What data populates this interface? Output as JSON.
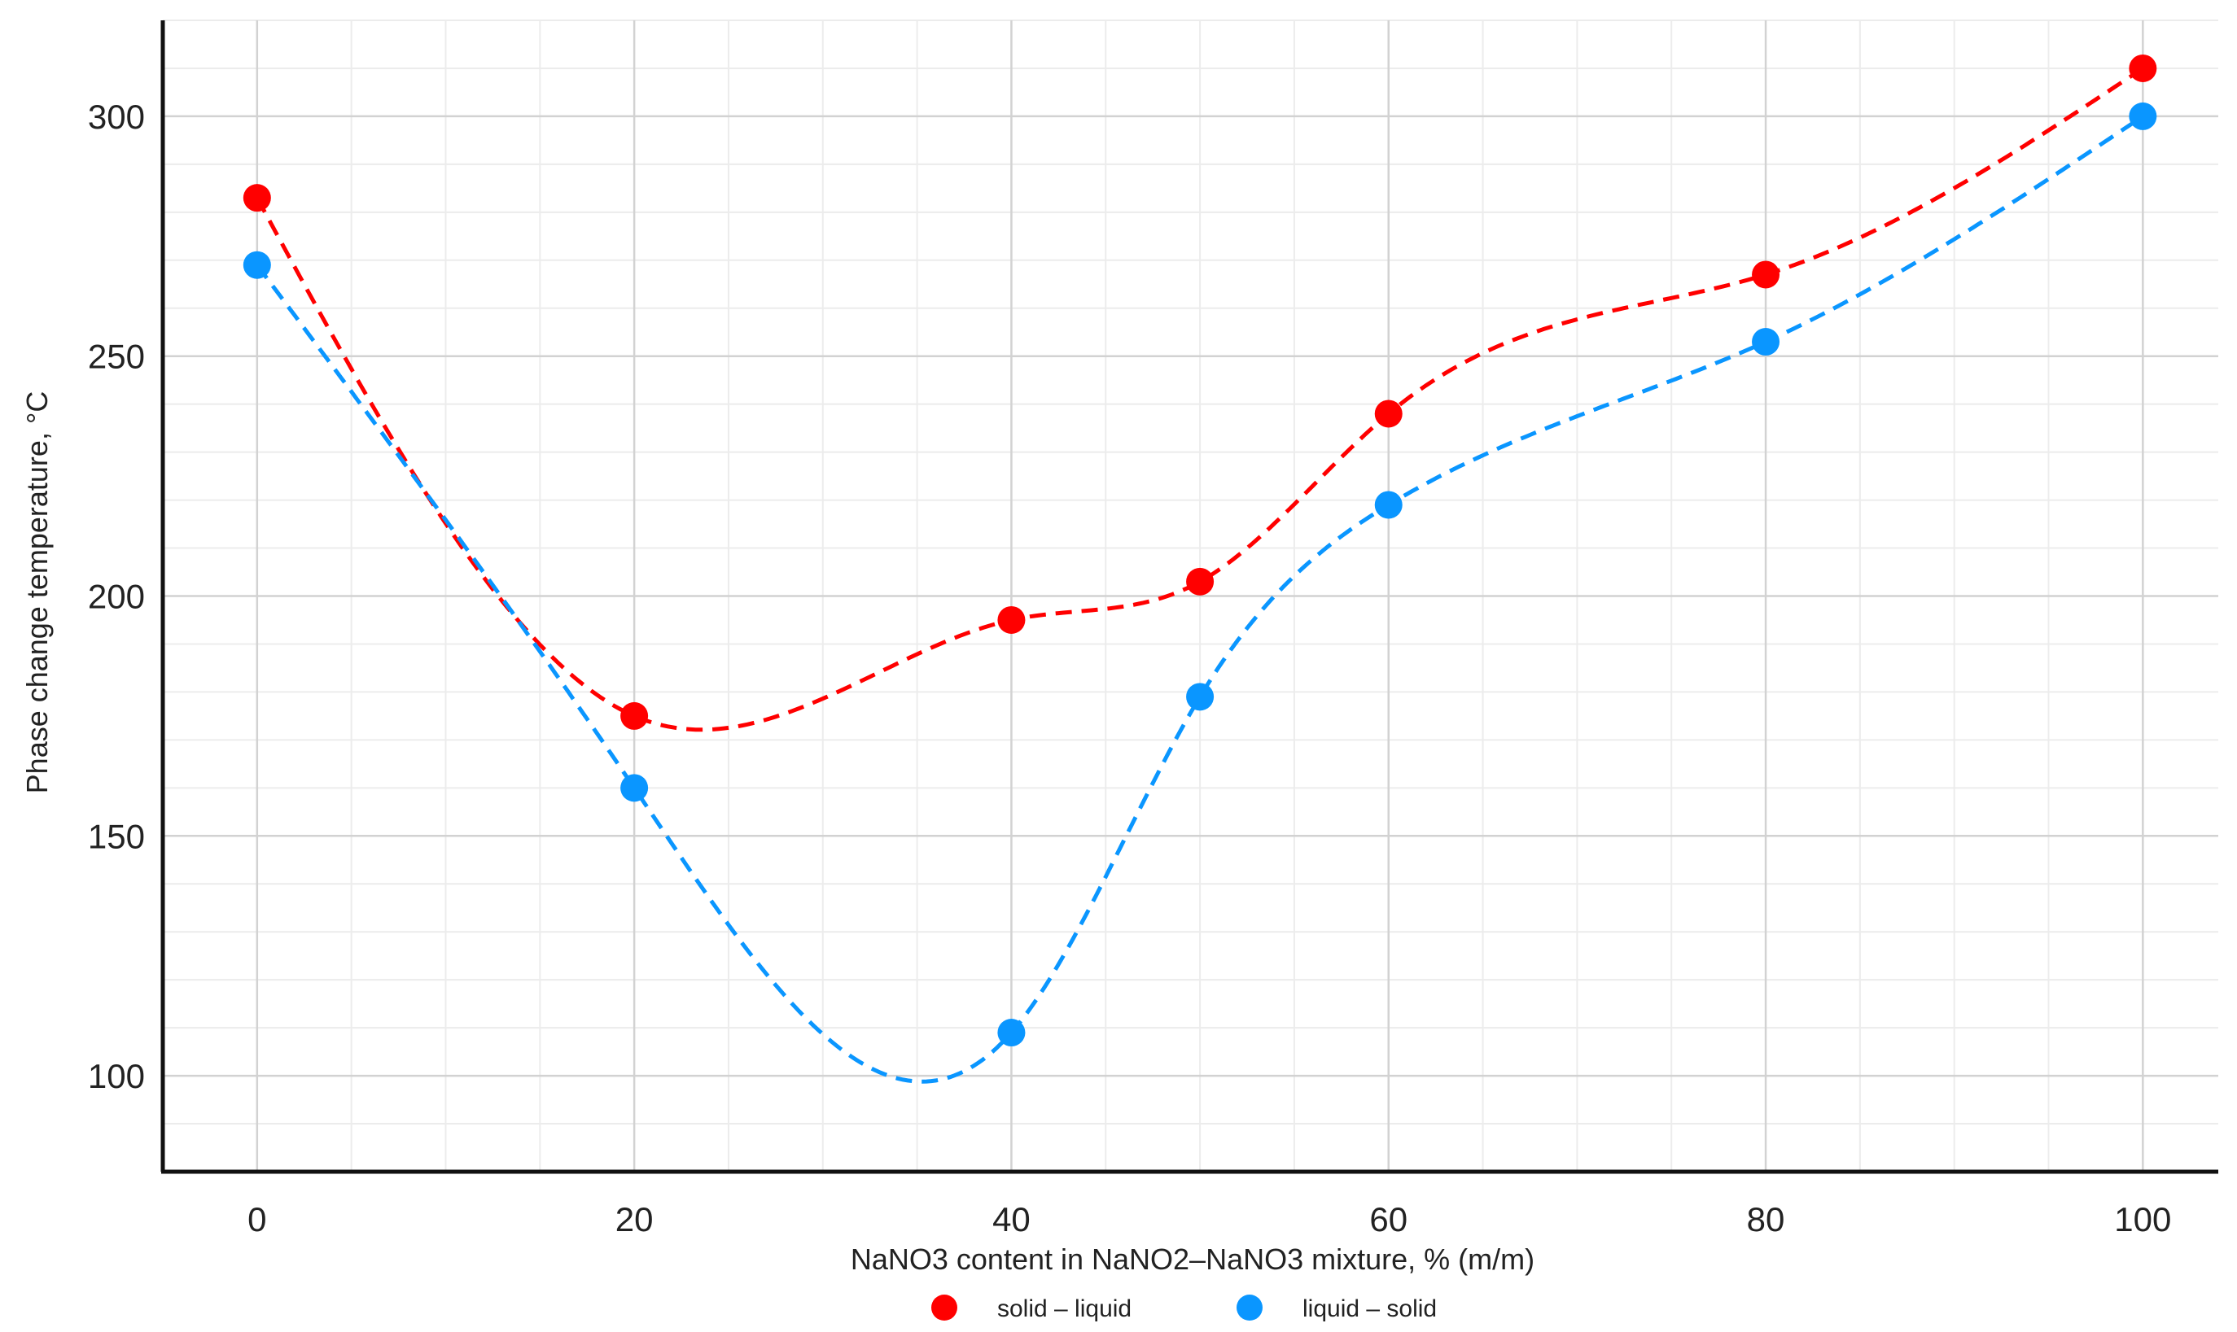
{
  "chart_data": {
    "type": "scatter",
    "title": "",
    "xlabel": "NaNO3 content in NaNO2–NaNO3 mixture, % (m/m)",
    "ylabel": "Phase change temperature, °C",
    "xlim": [
      -5,
      104
    ],
    "ylim": [
      80,
      320
    ],
    "xticks": [
      0,
      20,
      40,
      60,
      80,
      100
    ],
    "yticks": [
      100,
      150,
      200,
      250,
      300
    ],
    "x_tick_labels": [
      "0",
      "20",
      "40",
      "60",
      "80",
      "100"
    ],
    "y_tick_labels": [
      "100",
      "150",
      "200",
      "250",
      "300"
    ],
    "grid": true,
    "legend_position": "bottom-center",
    "series": [
      {
        "name": "solid – liquid",
        "color": "#ff0000",
        "line_style": "dashed smooth",
        "x": [
          0,
          20,
          40,
          50,
          60,
          80,
          100
        ],
        "y": [
          283,
          175,
          195,
          203,
          238,
          267,
          310
        ]
      },
      {
        "name": "liquid – solid",
        "color": "#0a96ff",
        "line_style": "dashed smooth",
        "x": [
          0,
          20,
          40,
          50,
          60,
          80,
          100
        ],
        "y": [
          269,
          160,
          109,
          179,
          219,
          253,
          300
        ]
      }
    ]
  }
}
